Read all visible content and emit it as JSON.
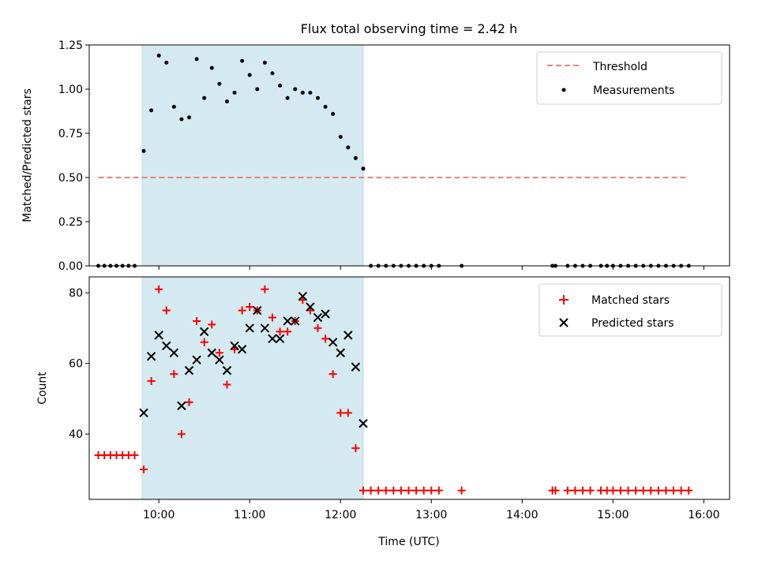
{
  "chart_data": [
    {
      "type": "scatter",
      "title": "Flux total observing time = 2.42 h",
      "xlabel": "",
      "ylabel": "Matched/Predicted stars",
      "xlim": [
        "09:14",
        "16:17"
      ],
      "ylim": [
        0,
        1.25
      ],
      "yticks": [
        0,
        0.25,
        0.5,
        0.75,
        1.0,
        1.25
      ],
      "ytick_labels": [
        "0.00",
        "0.25",
        "0.50",
        "0.75",
        "1.00",
        "1.25"
      ],
      "xticks": [
        "10:00",
        "11:00",
        "12:00",
        "13:00",
        "14:00",
        "15:00",
        "16:00"
      ],
      "xtick_labels_shown": false,
      "grid": false,
      "legend_position": "top-right",
      "shaded_region": {
        "x_start": "09:49",
        "x_end": "12:15",
        "color": "#d4eaf0"
      },
      "threshold": {
        "name": "Threshold",
        "value": 0.5,
        "x_start": "09:20",
        "x_end": "15:50",
        "color": "#f08080",
        "style": "dashed"
      },
      "series": [
        {
          "name": "Measurements",
          "marker": "dot",
          "color": "#000000",
          "x": [
            "09:20",
            "09:24",
            "09:28",
            "09:32",
            "09:36",
            "09:40",
            "09:44",
            "09:50",
            "09:55",
            "10:00",
            "10:05",
            "10:10",
            "10:15",
            "10:20",
            "10:25",
            "10:30",
            "10:35",
            "10:40",
            "10:45",
            "10:50",
            "10:55",
            "11:00",
            "11:05",
            "11:10",
            "11:15",
            "11:20",
            "11:25",
            "11:30",
            "11:35",
            "11:40",
            "11:45",
            "11:50",
            "11:55",
            "12:00",
            "12:05",
            "12:10",
            "12:15",
            "12:20",
            "12:25",
            "12:30",
            "12:35",
            "12:40",
            "12:45",
            "12:50",
            "12:55",
            "13:00",
            "13:05",
            "13:20",
            "14:20",
            "14:22",
            "14:30",
            "14:35",
            "14:40",
            "14:45",
            "14:52",
            "14:56",
            "15:00",
            "15:05",
            "15:10",
            "15:15",
            "15:20",
            "15:25",
            "15:30",
            "15:35",
            "15:40",
            "15:45",
            "15:50"
          ],
          "y": [
            0,
            0,
            0,
            0,
            0,
            0,
            0,
            0.65,
            0.88,
            1.19,
            1.15,
            0.9,
            0.83,
            0.84,
            1.17,
            0.95,
            1.12,
            1.03,
            0.93,
            0.98,
            1.16,
            1.08,
            1.0,
            1.15,
            1.09,
            1.02,
            0.95,
            1.0,
            0.98,
            0.98,
            0.95,
            0.9,
            0.86,
            0.73,
            0.67,
            0.61,
            0.55,
            0,
            0,
            0,
            0,
            0,
            0,
            0,
            0,
            0,
            0,
            0,
            0,
            0,
            0,
            0,
            0,
            0,
            0,
            0,
            0,
            0,
            0,
            0,
            0,
            0,
            0,
            0,
            0,
            0,
            0
          ]
        }
      ]
    },
    {
      "type": "scatter",
      "title": "",
      "xlabel": "Time (UTC)",
      "ylabel": "Count",
      "xlim": [
        "09:14",
        "16:17"
      ],
      "ylim": [
        21.5,
        84.5
      ],
      "yticks": [
        40,
        60,
        80
      ],
      "ytick_labels": [
        "40",
        "60",
        "80"
      ],
      "xticks": [
        "10:00",
        "11:00",
        "12:00",
        "13:00",
        "14:00",
        "15:00",
        "16:00"
      ],
      "xtick_labels": [
        "10:00",
        "11:00",
        "12:00",
        "13:00",
        "14:00",
        "15:00",
        "16:00"
      ],
      "grid": false,
      "legend_position": "top-right",
      "shaded_region": {
        "x_start": "09:49",
        "x_end": "12:15",
        "color": "#d4eaf0"
      },
      "series": [
        {
          "name": "Matched stars",
          "marker": "plus",
          "color": "#ff0000",
          "x": [
            "09:20",
            "09:24",
            "09:28",
            "09:32",
            "09:36",
            "09:40",
            "09:44",
            "09:50",
            "09:55",
            "10:00",
            "10:05",
            "10:10",
            "10:15",
            "10:20",
            "10:25",
            "10:30",
            "10:35",
            "10:40",
            "10:45",
            "10:50",
            "10:55",
            "11:00",
            "11:05",
            "11:10",
            "11:15",
            "11:20",
            "11:25",
            "11:30",
            "11:35",
            "11:40",
            "11:45",
            "11:50",
            "11:55",
            "12:00",
            "12:05",
            "12:10",
            "12:15",
            "12:20",
            "12:25",
            "12:30",
            "12:35",
            "12:40",
            "12:45",
            "12:50",
            "12:55",
            "13:00",
            "13:05",
            "13:20",
            "14:20",
            "14:22",
            "14:30",
            "14:35",
            "14:40",
            "14:45",
            "14:52",
            "14:56",
            "15:00",
            "15:05",
            "15:10",
            "15:15",
            "15:20",
            "15:25",
            "15:30",
            "15:35",
            "15:40",
            "15:45",
            "15:50"
          ],
          "y": [
            34,
            34,
            34,
            34,
            34,
            34,
            34,
            30,
            55,
            81,
            75,
            57,
            40,
            49,
            72,
            66,
            71,
            63,
            54,
            64,
            75,
            76,
            75,
            81,
            73,
            69,
            69,
            72,
            78,
            75,
            70,
            67,
            57,
            46,
            46,
            36,
            24,
            24,
            24,
            24,
            24,
            24,
            24,
            24,
            24,
            24,
            24,
            24,
            24,
            24,
            24,
            24,
            24,
            24,
            24,
            24,
            24,
            24,
            24,
            24,
            24,
            24,
            24,
            24,
            24,
            24,
            24
          ]
        },
        {
          "name": "Predicted stars",
          "marker": "x",
          "color": "#000000",
          "x": [
            "09:50",
            "09:55",
            "10:00",
            "10:05",
            "10:10",
            "10:15",
            "10:20",
            "10:25",
            "10:30",
            "10:35",
            "10:40",
            "10:45",
            "10:50",
            "10:55",
            "11:00",
            "11:05",
            "11:10",
            "11:15",
            "11:20",
            "11:25",
            "11:30",
            "11:35",
            "11:40",
            "11:45",
            "11:50",
            "11:55",
            "12:00",
            "12:05",
            "12:10",
            "12:15"
          ],
          "y": [
            46,
            62,
            68,
            65,
            63,
            48,
            58,
            61,
            69,
            63,
            61,
            58,
            65,
            64,
            70,
            75,
            70,
            67,
            67,
            72,
            72,
            79,
            76,
            73,
            74,
            66,
            63,
            68,
            59,
            43
          ]
        }
      ]
    }
  ]
}
